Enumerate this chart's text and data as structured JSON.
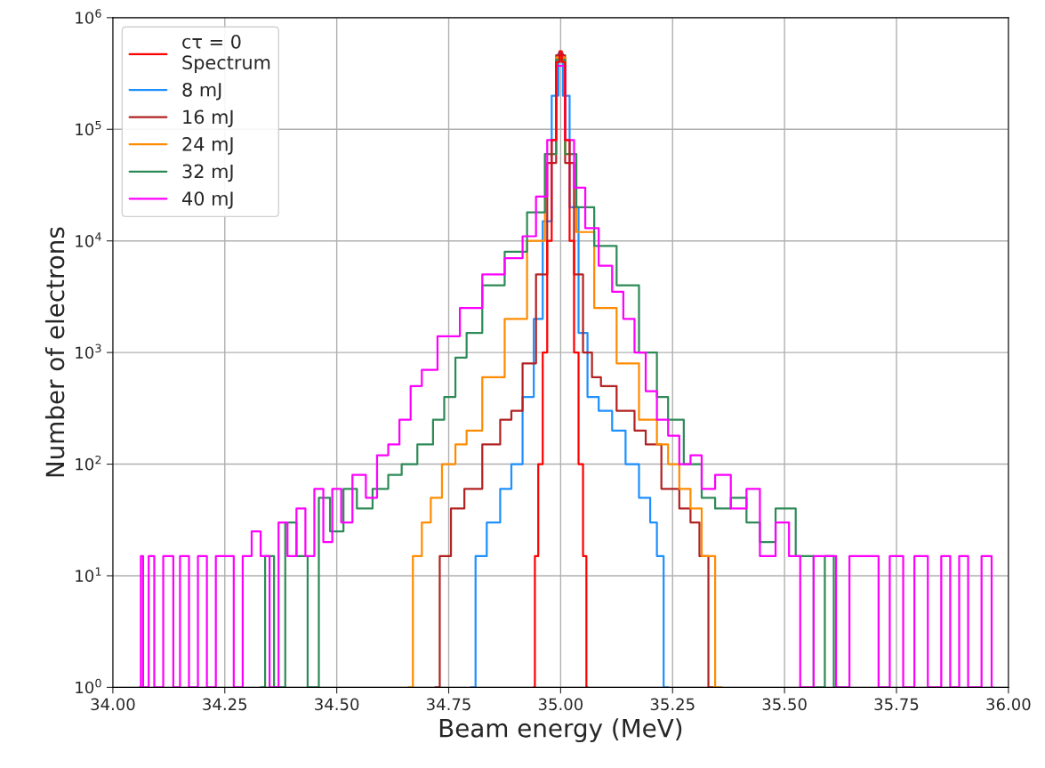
{
  "chart_data": {
    "type": "step",
    "xlabel": "Beam energy (MeV)",
    "ylabel": "Number of electrons",
    "xlim": [
      34.0,
      36.0
    ],
    "xticks": [
      {
        "value": 34.0,
        "label": "34.00"
      },
      {
        "value": 34.25,
        "label": "34.25"
      },
      {
        "value": 34.5,
        "label": "34.50"
      },
      {
        "value": 34.75,
        "label": "34.75"
      },
      {
        "value": 35.0,
        "label": "35.00"
      },
      {
        "value": 35.25,
        "label": "35.25"
      },
      {
        "value": 35.5,
        "label": "35.50"
      },
      {
        "value": 35.75,
        "label": "35.75"
      },
      {
        "value": 36.0,
        "label": "36.00"
      }
    ],
    "ylim": [
      1,
      1000000
    ],
    "yticks": [
      {
        "value": 1,
        "label": "10$^{0}$"
      },
      {
        "value": 10,
        "label": "10$^{1}$"
      },
      {
        "value": 100,
        "label": "10$^{2}$"
      },
      {
        "value": 1000,
        "label": "10$^{3}$"
      },
      {
        "value": 10000,
        "label": "10$^{4}$"
      },
      {
        "value": 100000,
        "label": "10$^{5}$"
      },
      {
        "value": 1000000,
        "label": "10$^{6}$"
      }
    ],
    "log": "y",
    "grid": true,
    "legend": "top left",
    "series": [
      {
        "name": "cτ = 0\nSpectrum",
        "color": "#ff0000",
        "x": [
          34.94,
          34.945,
          34.955,
          34.965,
          34.975,
          34.985,
          34.995,
          35.0,
          35.005,
          35.015,
          35.025,
          35.035,
          35.045,
          35.055,
          35.06
        ],
        "values": [
          1,
          15,
          100,
          1000,
          10000,
          80000,
          400000,
          500000,
          400000,
          80000,
          10000,
          1000,
          100,
          15,
          1
        ]
      },
      {
        "name": "8 mJ",
        "color": "#1e90ff",
        "x": [
          34.8,
          34.82,
          34.85,
          34.88,
          34.9,
          34.93,
          34.95,
          34.97,
          34.99,
          35.0,
          35.01,
          35.03,
          35.05,
          35.07,
          35.1,
          35.13,
          35.16,
          35.19,
          35.21,
          35.22,
          35.24
        ],
        "values": [
          1,
          15,
          30,
          60,
          100,
          400,
          2000,
          15000,
          200000,
          480000,
          200000,
          20000,
          1500,
          400,
          300,
          200,
          100,
          50,
          30,
          15,
          1
        ]
      },
      {
        "name": "16 mJ",
        "color": "#b22222",
        "x": [
          34.72,
          34.74,
          34.77,
          34.8,
          34.85,
          34.88,
          34.9,
          34.93,
          34.96,
          34.98,
          35.0,
          35.02,
          35.04,
          35.06,
          35.08,
          35.1,
          35.15,
          35.18,
          35.2,
          35.25,
          35.28,
          35.3,
          35.32,
          35.34
        ],
        "values": [
          1,
          15,
          40,
          60,
          150,
          250,
          300,
          800,
          5000,
          50000,
          460000,
          50000,
          5000,
          1000,
          600,
          500,
          300,
          200,
          150,
          60,
          40,
          30,
          15,
          1
        ]
      },
      {
        "name": "24 mJ",
        "color": "#ff8c00",
        "x": [
          34.66,
          34.68,
          34.7,
          34.72,
          34.75,
          34.78,
          34.8,
          34.85,
          34.9,
          34.95,
          34.98,
          35.0,
          35.02,
          35.05,
          35.1,
          35.15,
          35.2,
          35.23,
          35.25,
          35.28,
          35.3,
          35.33,
          35.36
        ],
        "values": [
          1,
          15,
          30,
          50,
          100,
          150,
          200,
          600,
          2000,
          10000,
          60000,
          440000,
          60000,
          12000,
          2500,
          800,
          250,
          150,
          100,
          60,
          40,
          15,
          1
        ]
      },
      {
        "name": "32 mJ",
        "color": "#2e8b57",
        "x": [
          34.33,
          34.35,
          34.37,
          34.4,
          34.42,
          34.45,
          34.47,
          34.5,
          34.53,
          34.56,
          34.6,
          34.63,
          34.66,
          34.7,
          34.73,
          34.75,
          34.78,
          34.8,
          34.85,
          34.9,
          34.95,
          34.98,
          35.0,
          35.02,
          35.05,
          35.1,
          35.15,
          35.2,
          35.23,
          35.25,
          35.3,
          35.33,
          35.36,
          35.4,
          35.43,
          35.46,
          35.5,
          35.55,
          35.58,
          35.6,
          35.62
        ],
        "values": [
          1,
          15,
          1,
          30,
          15,
          1,
          50,
          25,
          60,
          40,
          60,
          80,
          100,
          150,
          250,
          400,
          900,
          1500,
          4000,
          8000,
          18000,
          60000,
          420000,
          60000,
          20000,
          9000,
          4000,
          1000,
          400,
          250,
          100,
          50,
          40,
          50,
          30,
          20,
          40,
          15,
          1,
          15,
          1
        ]
      },
      {
        "name": "40 mJ",
        "color": "#ff00ff",
        "x": [
          34.06,
          34.065,
          34.07,
          34.09,
          34.095,
          34.13,
          34.14,
          34.16,
          34.18,
          34.2,
          34.22,
          34.24,
          34.26,
          34.28,
          34.3,
          34.32,
          34.34,
          34.36,
          34.38,
          34.4,
          34.42,
          34.44,
          34.46,
          34.48,
          34.5,
          34.52,
          34.55,
          34.58,
          34.6,
          34.63,
          34.65,
          34.68,
          34.7,
          34.75,
          34.8,
          34.85,
          34.9,
          34.93,
          34.96,
          34.98,
          35.0,
          35.02,
          35.04,
          35.07,
          35.1,
          35.13,
          35.15,
          35.18,
          35.2,
          35.23,
          35.25,
          35.28,
          35.3,
          35.33,
          35.36,
          35.4,
          35.43,
          35.46,
          35.5,
          35.52,
          35.55,
          35.58,
          35.6,
          35.63,
          35.66,
          35.7,
          35.72,
          35.75,
          35.78,
          35.8,
          35.84,
          35.86,
          35.88,
          35.9,
          35.92,
          35.96,
          35.965
        ],
        "values": [
          1,
          15,
          1,
          15,
          1,
          15,
          1,
          15,
          1,
          15,
          1,
          15,
          15,
          1,
          15,
          25,
          15,
          1,
          30,
          15,
          40,
          15,
          60,
          20,
          60,
          30,
          80,
          50,
          120,
          150,
          250,
          500,
          700,
          1400,
          2500,
          5000,
          7000,
          11000,
          25000,
          80000,
          370000,
          80000,
          30000,
          13000,
          6000,
          3500,
          2000,
          1000,
          450,
          250,
          180,
          100,
          120,
          60,
          80,
          40,
          60,
          15,
          30,
          15,
          1,
          15,
          15,
          1,
          15,
          15,
          1,
          15,
          1,
          15,
          1,
          15,
          1,
          15,
          1,
          15,
          1
        ]
      }
    ]
  }
}
